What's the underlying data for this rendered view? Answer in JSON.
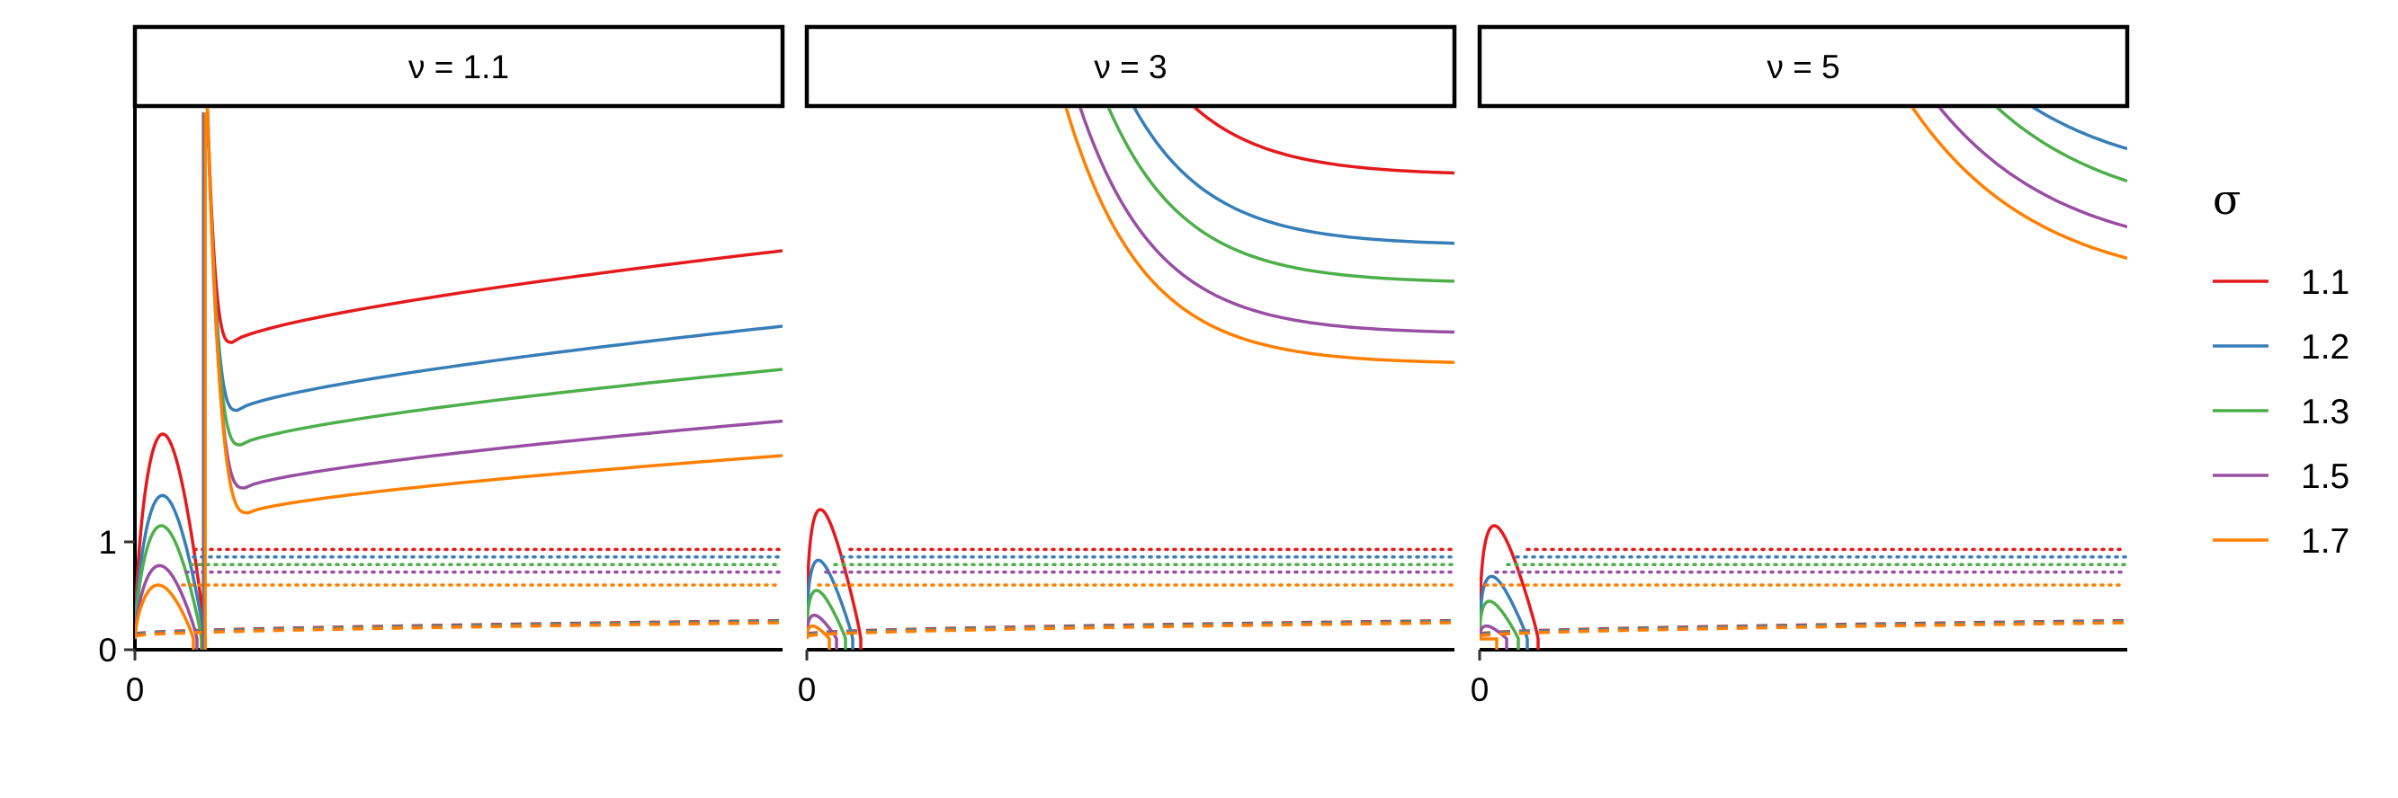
{
  "chart_data": {
    "type": "line",
    "facets": [
      {
        "label": "ν = 1.1",
        "nu": 1.1,
        "y_ticks": [
          "0",
          "1"
        ],
        "x_ticks": [
          "0"
        ],
        "solid_curves": [
          {
            "sigma": "1.1",
            "hump_peak": 2.0,
            "min": 2.85,
            "end": 3.7
          },
          {
            "sigma": "1.2",
            "hump_peak": 1.43,
            "min": 2.22,
            "end": 3.0
          },
          {
            "sigma": "1.3",
            "hump_peak": 1.15,
            "min": 1.9,
            "end": 2.6
          },
          {
            "sigma": "1.5",
            "hump_peak": 0.78,
            "min": 1.5,
            "end": 2.12
          },
          {
            "sigma": "1.7",
            "hump_peak": 0.6,
            "min": 1.27,
            "end": 1.8
          }
        ],
        "dotted_levels": [
          0.93,
          0.86,
          0.79,
          0.72,
          0.6
        ]
      },
      {
        "label": "ν = 3",
        "nu": 3,
        "y_ticks": [],
        "x_ticks": [
          "0"
        ],
        "solid_curves": [
          {
            "sigma": "1.1",
            "hump_peak": 1.3,
            "end": 4.4
          },
          {
            "sigma": "1.2",
            "hump_peak": 0.83,
            "end": 3.75
          },
          {
            "sigma": "1.3",
            "hump_peak": 0.55,
            "end": 3.4
          },
          {
            "sigma": "1.5",
            "hump_peak": 0.32,
            "end": 2.93
          },
          {
            "sigma": "1.7",
            "hump_peak": 0.22,
            "end": 2.65
          }
        ],
        "dotted_levels": [
          0.93,
          0.86,
          0.79,
          0.72,
          0.6
        ]
      },
      {
        "label": "ν = 5",
        "nu": 5,
        "y_ticks": [],
        "x_ticks": [
          "0"
        ],
        "solid_curves": [
          {
            "sigma": "1.1",
            "hump_peak": 1.15,
            "end": 4.9
          },
          {
            "sigma": "1.2",
            "hump_peak": 0.68,
            "end": 4.3
          },
          {
            "sigma": "1.3",
            "hump_peak": 0.45,
            "end": 3.97
          },
          {
            "sigma": "1.5",
            "hump_peak": 0.22,
            "end": 3.6
          },
          {
            "sigma": "1.7",
            "hump_peak": 0.1,
            "end": 3.32
          }
        ],
        "dotted_levels": [
          0.93,
          0.86,
          0.79,
          0.72,
          0.6
        ]
      }
    ],
    "dashed_band": [
      0.15,
      0.27
    ],
    "ylim": [
      0,
      5
    ],
    "legend": {
      "title": "σ",
      "placement": "right",
      "items": [
        {
          "label": "1.1",
          "color": "#e41a1c"
        },
        {
          "label": "1.2",
          "color": "#377eb8"
        },
        {
          "label": "1.3",
          "color": "#4daf4a"
        },
        {
          "label": "1.5",
          "color": "#984ea3"
        },
        {
          "label": "1.7",
          "color": "#ff7f00"
        }
      ]
    }
  }
}
